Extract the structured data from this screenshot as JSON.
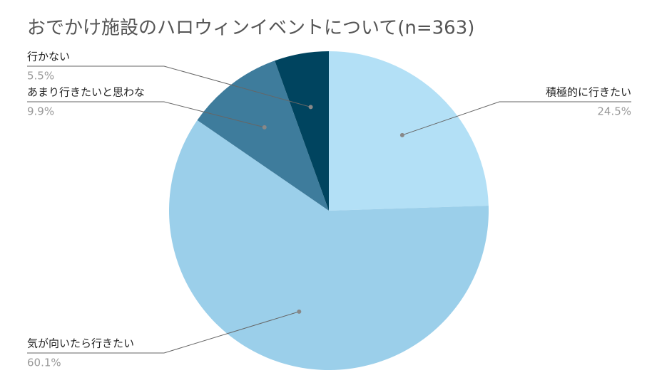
{
  "chart_data": {
    "type": "pie",
    "title": "おでかけ施設のハロウィンイベントについて(n=363)",
    "categories": [
      "積極的に行きたい",
      "気が向いたら行きたい",
      "あまり行きたいと思わな",
      "行かない"
    ],
    "values": [
      24.5,
      60.1,
      9.9,
      5.5
    ],
    "value_labels": [
      "24.5%",
      "60.1%",
      "9.9%",
      "5.5%"
    ],
    "colors": [
      "#b3e0f6",
      "#9bcfea",
      "#3e7c9c",
      "#00445f"
    ]
  }
}
